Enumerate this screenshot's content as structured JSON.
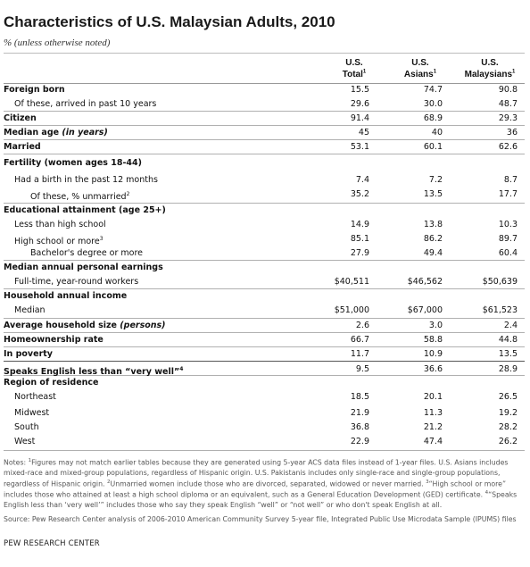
{
  "title": "Characteristics of U.S. Malaysian Adults, 2010",
  "subtitle": "% (unless otherwise noted)",
  "columns": [
    {
      "line1": "U.S.",
      "line2": "Total",
      "sup": "1"
    },
    {
      "line1": "U.S.",
      "line2": "Asians",
      "sup": "1"
    },
    {
      "line1": "U.S.",
      "line2": "Malaysians",
      "sup": "1"
    }
  ],
  "rows": [
    {
      "label": "Foreign born",
      "v1": "15.5",
      "v2": "74.7",
      "v3": "90.8"
    },
    {
      "label": "Of these, arrived in past 10 years",
      "v1": "29.6",
      "v2": "30.0",
      "v3": "48.7"
    },
    {
      "label": "Citizen",
      "v1": "91.4",
      "v2": "68.9",
      "v3": "29.3"
    },
    {
      "label_main": "Median age",
      "label_em": "(in years)",
      "v1": "45",
      "v2": "40",
      "v3": "36"
    },
    {
      "label": "Married",
      "v1": "53.1",
      "v2": "60.1",
      "v3": "62.6"
    },
    {
      "label": "Fertility (women ages 18-44)"
    },
    {
      "label": "Had a birth in the past 12 months",
      "v1": "7.4",
      "v2": "7.2",
      "v3": "8.7"
    },
    {
      "label": "Of these, % unmarried",
      "sup": "2",
      "v1": "35.2",
      "v2": "13.5",
      "v3": "17.7"
    },
    {
      "label": "Educational attainment (age 25+)"
    },
    {
      "label": "Less than high school",
      "v1": "14.9",
      "v2": "13.8",
      "v3": "10.3"
    },
    {
      "label": "High school or more",
      "sup": "3",
      "v1": "85.1",
      "v2": "86.2",
      "v3": "89.7"
    },
    {
      "label": "Bachelor's degree or more",
      "v1": "27.9",
      "v2": "49.4",
      "v3": "60.4"
    },
    {
      "label": "Median annual personal earnings"
    },
    {
      "label": "Full-time, year-round workers",
      "v1": "$40,511",
      "v2": "$46,562",
      "v3": "$50,639"
    },
    {
      "label": "Household annual income"
    },
    {
      "label": "Median",
      "v1": "$51,000",
      "v2": "$67,000",
      "v3": "$61,523"
    },
    {
      "label_main": "Average household size",
      "label_em": "(persons)",
      "v1": "2.6",
      "v2": "3.0",
      "v3": "2.4"
    },
    {
      "label": "Homeownership rate",
      "v1": "66.7",
      "v2": "58.8",
      "v3": "44.8"
    },
    {
      "label": "In poverty",
      "v1": "11.7",
      "v2": "10.9",
      "v3": "13.5"
    },
    {
      "label": "Speaks English less than “very well”",
      "sup": "4",
      "v1": "9.5",
      "v2": "36.6",
      "v3": "28.9"
    },
    {
      "label": "Region of residence"
    },
    {
      "label": "Northeast",
      "v1": "18.5",
      "v2": "20.1",
      "v3": "26.5"
    },
    {
      "label": "Midwest",
      "v1": "21.9",
      "v2": "11.3",
      "v3": "19.2"
    },
    {
      "label": "South",
      "v1": "36.8",
      "v2": "21.2",
      "v3": "28.2"
    },
    {
      "label": "West",
      "v1": "22.9",
      "v2": "47.4",
      "v3": "26.2"
    }
  ],
  "notes": {
    "prefix": "Notes: ",
    "sup1": "1",
    "text1": "Figures may not match earlier tables because they are generated using 5-year ACS data files instead of 1-year files. U.S. Asians includes mixed-race and mixed-group populations, regardless of Hispanic origin. U.S. Pakistanis includes only single-race and single-group populations, regardless of Hispanic origin. ",
    "sup2": "2",
    "text2": "Unmarried women include those who are divorced, separated, widowed or never married. ",
    "sup3": "3",
    "text3": "“High school or more” includes those who attained at least a high school diploma or an equivalent, such as a General Education Development (GED) certificate. ",
    "sup4": "4",
    "text4": "“Speaks English less than ‘very well’” includes those who say they speak English “well” or “not well” or who don't speak English at all."
  },
  "source": "Source: Pew Research Center analysis of 2006-2010 American Community Survey 5-year file, Integrated Public Use Microdata Sample (IPUMS) files",
  "org": "PEW RESEARCH CENTER"
}
